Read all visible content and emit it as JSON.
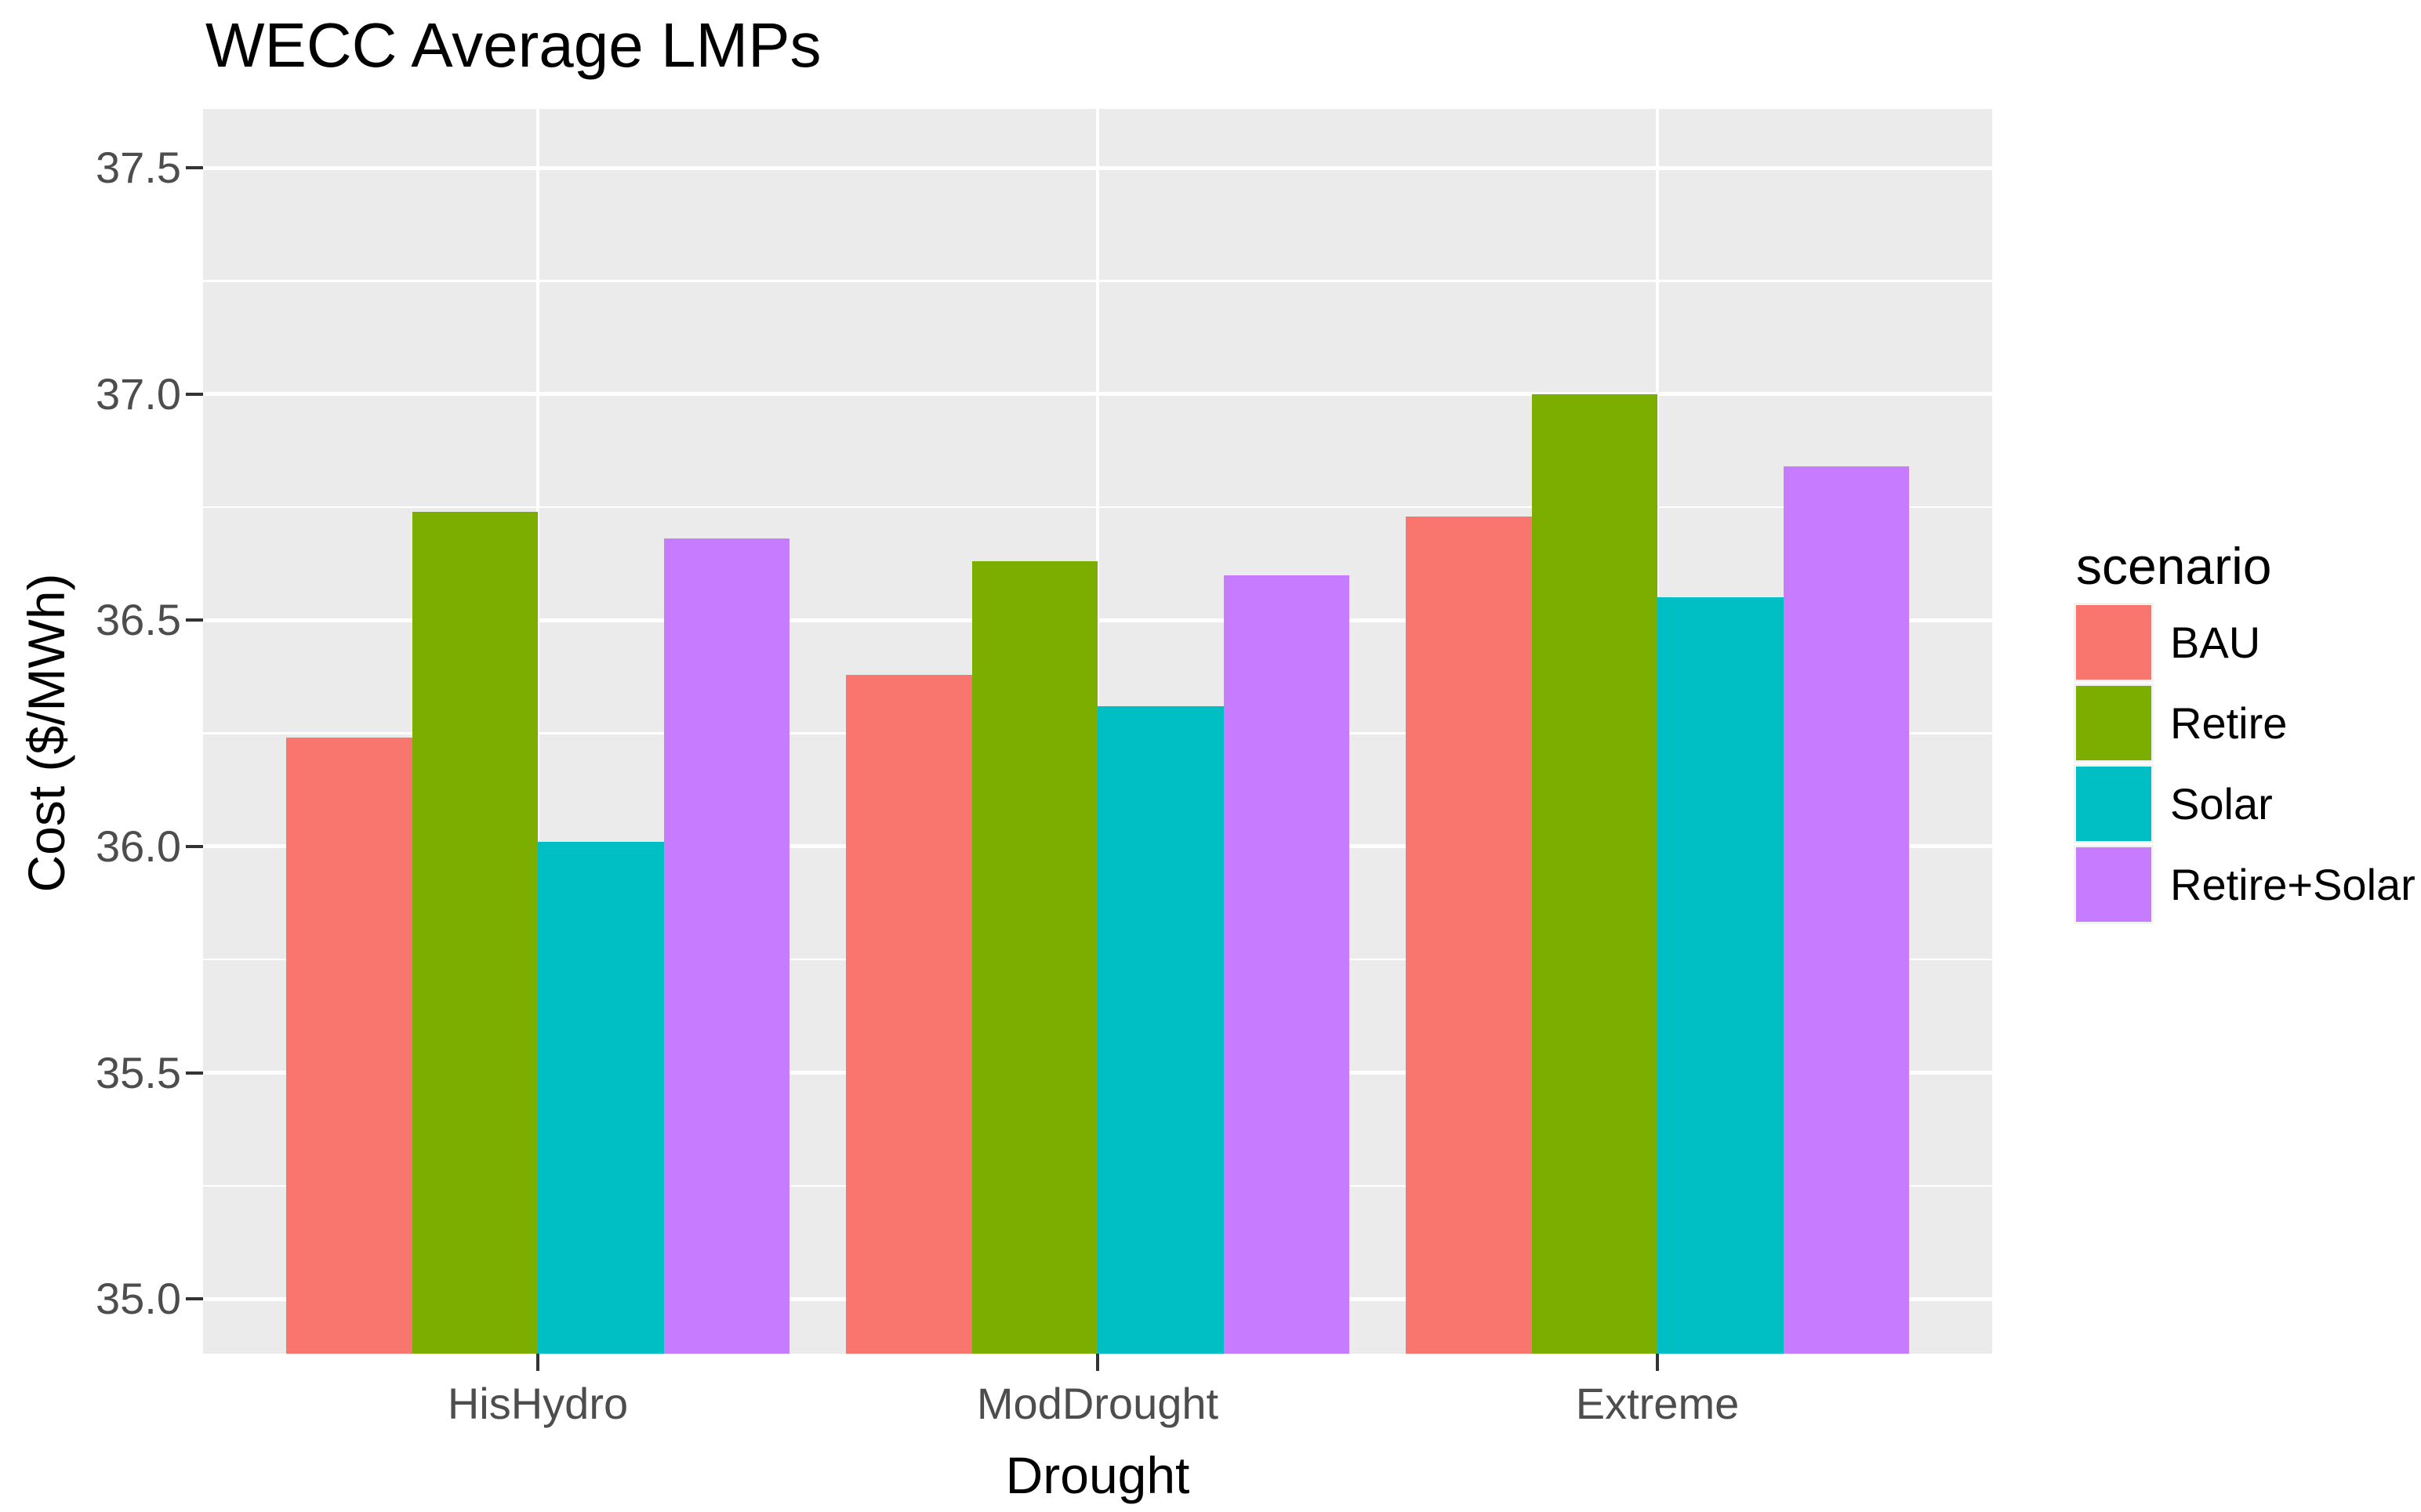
{
  "title": "WECC Average LMPs",
  "chart_data": {
    "type": "bar",
    "title": "WECC Average LMPs",
    "xlabel": "Drought",
    "ylabel": "Cost ($/MWh)",
    "categories": [
      "HisHydro",
      "ModDrought",
      "Extreme"
    ],
    "series": [
      {
        "name": "BAU",
        "color": "#F8766D",
        "values": [
          36.24,
          36.38,
          36.73
        ]
      },
      {
        "name": "Retire",
        "color": "#7CAE00",
        "values": [
          36.74,
          36.63,
          37.0
        ]
      },
      {
        "name": "Solar",
        "color": "#00BFC4",
        "values": [
          36.01,
          36.31,
          36.55
        ]
      },
      {
        "name": "Retire+Solar",
        "color": "#C77CFF",
        "values": [
          36.68,
          36.6,
          36.84
        ]
      }
    ],
    "legend": {
      "title": "scenario",
      "position": "right"
    },
    "ylim": [
      34.879,
      37.63
    ],
    "yticks": [
      35.0,
      35.5,
      36.0,
      36.5,
      37.0,
      37.5
    ],
    "ytick_labels": [
      "35.0",
      "35.5",
      "36.0",
      "36.5",
      "37.0",
      "37.5"
    ],
    "grid": {
      "major_on": true,
      "minor_on": true,
      "major_color": "#FFFFFF",
      "minor_color": "#FFFFFF"
    },
    "colors": {
      "panel_background": "#EBEBEB",
      "gridline": "#FFFFFF",
      "axis_text": "#4D4D4D",
      "tick_mark": "#333333",
      "title_text": "#000000"
    }
  }
}
